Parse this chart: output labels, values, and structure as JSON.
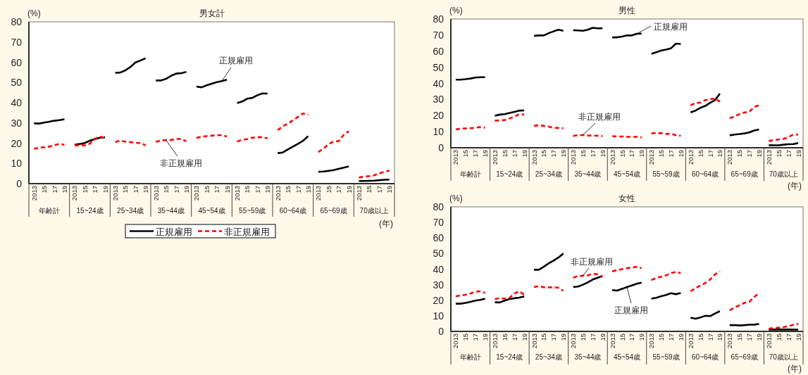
{
  "chart_data": [
    {
      "type": "line",
      "title": "男女計",
      "ylabel": "(%)",
      "xlabel": "(年)",
      "legend": "bottom",
      "ylim": [
        0,
        80
      ],
      "yticks": [
        0,
        10,
        20,
        30,
        40,
        50,
        60,
        70,
        80
      ],
      "categories": [
        "2013",
        null,
        "15",
        null,
        "17",
        null,
        "19",
        null,
        "2013",
        null,
        "15",
        null,
        "17",
        null,
        "19",
        null,
        "2013",
        null,
        "15",
        null,
        "17",
        null,
        "19",
        null,
        "2013",
        null,
        "15",
        null,
        "17",
        null,
        "19",
        null,
        "2013",
        null,
        "15",
        null,
        "17",
        null,
        "19",
        null,
        "2013",
        null,
        "15",
        null,
        "17",
        null,
        "19",
        null,
        "2013",
        null,
        "15",
        null,
        "17",
        null,
        "19",
        null,
        "2013",
        null,
        "15",
        null,
        "17",
        null,
        "19",
        null,
        "2013",
        null,
        "15",
        null,
        "17",
        null,
        "19"
      ],
      "annotations": [
        "年齢計",
        "15~24歳",
        "25~34歳",
        "35~44歳",
        "45~54歳",
        "55~59歳",
        "60~64歳",
        "65~69歳",
        "70歳以上"
      ],
      "series": [
        {
          "name": "正規雇用",
          "color": "#000000",
          "line_style": "solid",
          "values": [
            29.8,
            29.7,
            30.2,
            30.6,
            31.1,
            31.4,
            31.8,
            null,
            19.2,
            19.6,
            20.1,
            21.2,
            22.0,
            22.7,
            22.9,
            null,
            54.8,
            54.9,
            56.0,
            57.7,
            59.9,
            60.9,
            62.0,
            null,
            51.0,
            51.0,
            51.8,
            53.3,
            54.4,
            54.6,
            55.2,
            null,
            48.0,
            47.6,
            48.6,
            49.4,
            50.2,
            50.7,
            51.4,
            null,
            39.8,
            40.6,
            42.0,
            42.4,
            43.7,
            44.6,
            44.5,
            null,
            15.1,
            15.4,
            16.9,
            18.3,
            19.7,
            21.2,
            23.5,
            null,
            5.8,
            6.0,
            6.3,
            6.7,
            7.3,
            7.9,
            8.5,
            null,
            1.3,
            1.3,
            1.4,
            1.5,
            1.7,
            1.9,
            2.0
          ]
        },
        {
          "name": "非正規雇用",
          "color": "#ff0000",
          "line_style": "dashed",
          "values": [
            17.2,
            17.8,
            18.0,
            18.3,
            19.0,
            19.6,
            19.2,
            null,
            18.9,
            18.9,
            18.9,
            19.7,
            22.2,
            23.2,
            22.6,
            null,
            20.6,
            21.2,
            20.8,
            20.5,
            20.2,
            20.1,
            18.9,
            null,
            20.6,
            21.4,
            21.5,
            21.6,
            22.1,
            22.1,
            20.9,
            null,
            22.6,
            23.2,
            23.5,
            23.7,
            23.9,
            24.0,
            23.3,
            null,
            20.9,
            21.6,
            22.0,
            22.7,
            22.9,
            23.0,
            22.4,
            null,
            26.4,
            28.4,
            29.6,
            31.3,
            33.0,
            34.7,
            34.0,
            null,
            15.6,
            17.3,
            19.5,
            20.8,
            21.0,
            24.1,
            25.9,
            null,
            3.0,
            3.5,
            3.7,
            4.1,
            5.0,
            5.9,
            6.4
          ]
        }
      ]
    },
    {
      "type": "line",
      "title": "男性",
      "ylabel": "(%)",
      "xlabel": "(年)",
      "ylim": [
        0,
        80
      ],
      "yticks": [
        0,
        10,
        20,
        30,
        40,
        50,
        60,
        70,
        80
      ],
      "categories": [
        "2013",
        null,
        "15",
        null,
        "17",
        null,
        "19",
        null,
        "2013",
        null,
        "15",
        null,
        "17",
        null,
        "19",
        null,
        "2013",
        null,
        "15",
        null,
        "17",
        null,
        "19",
        null,
        "2013",
        null,
        "15",
        null,
        "17",
        null,
        "19",
        null,
        "2013",
        null,
        "15",
        null,
        "17",
        null,
        "19",
        null,
        "2013",
        null,
        "15",
        null,
        "17",
        null,
        "19",
        null,
        "2013",
        null,
        "15",
        null,
        "17",
        null,
        "19",
        null,
        "2013",
        null,
        "15",
        null,
        "17",
        null,
        "19",
        null,
        "2013",
        null,
        "15",
        null,
        "17",
        null,
        "19"
      ],
      "annotations": [
        "年齢計",
        "15~24歳",
        "25~34歳",
        "35~44歳",
        "45~54歳",
        "55~59歳",
        "60~64歳",
        "65~69歳",
        "70歳以上"
      ],
      "series": [
        {
          "name": "正規雇用",
          "color": "#000000",
          "line_style": "solid",
          "values": [
            42.3,
            42.3,
            42.6,
            43.0,
            43.6,
            43.8,
            43.8,
            null,
            19.9,
            20.6,
            20.9,
            21.6,
            22.3,
            23.1,
            23.2,
            null,
            69.5,
            69.8,
            69.8,
            71.2,
            72.3,
            73.3,
            72.7,
            null,
            73.0,
            72.9,
            72.7,
            73.3,
            74.5,
            74.2,
            74.2,
            null,
            68.6,
            68.6,
            69.1,
            69.8,
            69.8,
            70.8,
            70.9,
            null,
            58.4,
            59.3,
            60.4,
            61.0,
            61.8,
            64.7,
            64.5,
            null,
            22.0,
            23.1,
            24.8,
            26.0,
            27.9,
            29.6,
            33.6,
            null,
            7.7,
            8.2,
            8.5,
            8.9,
            9.5,
            10.7,
            11.4,
            null,
            1.6,
            1.5,
            1.5,
            1.9,
            2.2,
            2.3,
            2.9
          ]
        },
        {
          "name": "非正規雇用",
          "color": "#ff0000",
          "line_style": "dashed",
          "values": [
            11.4,
            11.9,
            12.0,
            12.1,
            12.4,
            12.9,
            12.4,
            null,
            16.9,
            16.9,
            17.2,
            18.2,
            19.4,
            20.9,
            20.6,
            null,
            13.6,
            14.0,
            13.6,
            13.1,
            12.4,
            12.3,
            12.1,
            null,
            7.3,
            7.8,
            7.9,
            7.6,
            7.6,
            7.4,
            7.2,
            null,
            7.2,
            7.0,
            7.0,
            6.8,
            6.8,
            6.8,
            6.4,
            null,
            8.9,
            9.2,
            9.0,
            8.6,
            8.8,
            7.8,
            7.4,
            null,
            26.3,
            27.9,
            28.0,
            29.6,
            30.1,
            30.7,
            28.6,
            null,
            18.4,
            19.4,
            20.9,
            21.9,
            22.3,
            25.3,
            26.4,
            null,
            4.1,
            4.8,
            5.1,
            5.5,
            6.6,
            8.2,
            8.2
          ]
        }
      ]
    },
    {
      "type": "line",
      "title": "女性",
      "ylabel": "(%)",
      "xlabel": "(年)",
      "ylim": [
        0,
        80
      ],
      "yticks": [
        0,
        10,
        20,
        30,
        40,
        50,
        60,
        70,
        80
      ],
      "categories": [
        "2013",
        null,
        "15",
        null,
        "17",
        null,
        "19",
        null,
        "2013",
        null,
        "15",
        null,
        "17",
        null,
        "19",
        null,
        "2013",
        null,
        "15",
        null,
        "17",
        null,
        "19",
        null,
        "2013",
        null,
        "15",
        null,
        "17",
        null,
        "19",
        null,
        "2013",
        null,
        "15",
        null,
        "17",
        null,
        "19",
        null,
        "2013",
        null,
        "15",
        null,
        "17",
        null,
        "19",
        null,
        "2013",
        null,
        "15",
        null,
        "17",
        null,
        "19",
        null,
        "2013",
        null,
        "15",
        null,
        "17",
        null,
        "19",
        null,
        "2013",
        null,
        "15",
        null,
        "17",
        null,
        "19"
      ],
      "annotations": [
        "年齢計",
        "15~24歳",
        "25~34歳",
        "35~44歳",
        "45~54歳",
        "55~59歳",
        "60~64歳",
        "65~69歳",
        "70歳以上"
      ],
      "series": [
        {
          "name": "正規雇用",
          "color": "#000000",
          "line_style": "solid",
          "values": [
            17.8,
            17.8,
            18.3,
            19.0,
            19.8,
            20.2,
            21.0,
            null,
            18.7,
            18.6,
            19.8,
            20.8,
            21.3,
            21.7,
            22.5,
            null,
            39.6,
            39.6,
            41.5,
            43.7,
            45.5,
            47.5,
            50.0,
            null,
            28.5,
            28.8,
            30.0,
            31.5,
            33.3,
            34.5,
            35.5,
            null,
            26.5,
            26.2,
            27.3,
            28.5,
            29.5,
            30.6,
            31.3,
            null,
            21.0,
            21.6,
            22.6,
            23.4,
            24.5,
            23.9,
            24.6,
            null,
            8.8,
            8.1,
            8.9,
            10.0,
            9.8,
            11.5,
            13.0,
            null,
            4.0,
            4.1,
            3.8,
            4.0,
            4.3,
            4.3,
            4.8,
            null,
            1.2,
            1.2,
            1.2,
            1.2,
            1.2,
            1.1,
            1.1
          ]
        },
        {
          "name": "非正規雇用",
          "color": "#ff0000",
          "line_style": "dashed",
          "values": [
            22.5,
            23.1,
            23.5,
            24.3,
            25.5,
            25.8,
            24.7,
            null,
            20.8,
            21.3,
            21.0,
            21.6,
            24.3,
            25.8,
            23.5,
            null,
            28.5,
            29.1,
            28.3,
            28.3,
            28.3,
            28.0,
            26.1,
            null,
            34.5,
            35.5,
            35.8,
            36.0,
            37.0,
            36.7,
            35.2,
            null,
            38.5,
            39.3,
            40.0,
            40.6,
            41.0,
            41.4,
            40.7,
            null,
            33.0,
            34.3,
            35.1,
            36.0,
            37.5,
            38.1,
            37.5,
            null,
            25.8,
            27.6,
            29.5,
            31.0,
            33.3,
            36.6,
            38.5,
            null,
            13.5,
            15.3,
            16.8,
            18.3,
            19.0,
            22.0,
            24.7,
            null,
            1.8,
            2.1,
            2.4,
            2.7,
            3.3,
            4.2,
            4.9
          ]
        }
      ]
    }
  ]
}
